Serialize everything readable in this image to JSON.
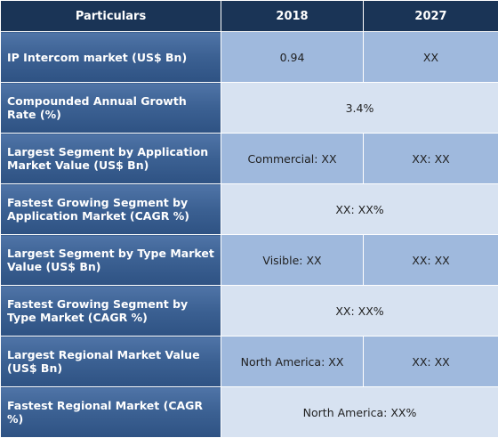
{
  "header": {
    "col1": "Particulars",
    "col2": "2018",
    "col3": "2027"
  },
  "rows": [
    {
      "label": "IP Intercom market (US$ Bn)",
      "v2018": "0.94",
      "v2027": "XX"
    },
    {
      "label": "Compounded Annual Growth Rate (%)",
      "merged": "3.4%"
    },
    {
      "label": "Largest Segment by Application Market Value (US$ Bn)",
      "v2018": "Commercial: XX",
      "v2027": "XX: XX"
    },
    {
      "label": "Fastest Growing Segment by Application Market (CAGR %)",
      "merged": "XX: XX%"
    },
    {
      "label": "Largest Segment by Type Market Value (US$ Bn)",
      "v2018": "Visible: XX",
      "v2027": "XX: XX"
    },
    {
      "label": "Fastest Growing Segment by Type Market (CAGR %)",
      "merged": "XX: XX%"
    },
    {
      "label": "Largest Regional Market Value (US$ Bn)",
      "v2018": "North America: XX",
      "v2027": "XX: XX"
    },
    {
      "label": "Fastest Regional Market (CAGR %)",
      "merged": "North America: XX%"
    }
  ]
}
